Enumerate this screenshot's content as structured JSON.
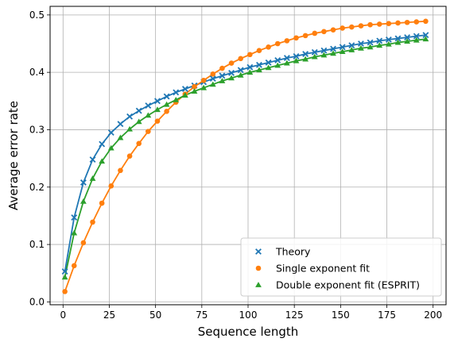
{
  "chart_data": {
    "type": "scatter",
    "xlabel": "Sequence length",
    "ylabel": "Average error rate",
    "xlim": [
      -7,
      207
    ],
    "ylim": [
      -0.005,
      0.515
    ],
    "xticks": [
      0,
      25,
      50,
      75,
      100,
      125,
      150,
      175,
      200
    ],
    "yticks": [
      0.0,
      0.1,
      0.2,
      0.3,
      0.4,
      0.5
    ],
    "xtick_labels": [
      "0",
      "25",
      "50",
      "75",
      "100",
      "125",
      "150",
      "175",
      "200"
    ],
    "ytick_labels": [
      "0.0",
      "0.1",
      "0.2",
      "0.3",
      "0.4",
      "0.5"
    ],
    "grid": true,
    "legend_position": "lower right",
    "x": [
      1,
      6,
      11,
      16,
      21,
      26,
      31,
      36,
      41,
      46,
      51,
      56,
      61,
      66,
      71,
      76,
      81,
      86,
      91,
      96,
      101,
      106,
      111,
      116,
      121,
      126,
      131,
      136,
      141,
      146,
      151,
      156,
      161,
      166,
      171,
      176,
      181,
      186,
      191,
      196
    ],
    "series": [
      {
        "name": "Theory",
        "marker": "x",
        "color": "#1f77b4",
        "values": [
          0.053,
          0.147,
          0.208,
          0.248,
          0.275,
          0.295,
          0.31,
          0.323,
          0.333,
          0.342,
          0.35,
          0.358,
          0.365,
          0.371,
          0.377,
          0.383,
          0.389,
          0.394,
          0.399,
          0.404,
          0.409,
          0.413,
          0.417,
          0.421,
          0.425,
          0.428,
          0.432,
          0.435,
          0.438,
          0.441,
          0.444,
          0.447,
          0.45,
          0.452,
          0.455,
          0.457,
          0.459,
          0.461,
          0.463,
          0.465
        ]
      },
      {
        "name": "Single exponent fit",
        "marker": "o",
        "color": "#ff7f0e",
        "values": [
          0.018,
          0.063,
          0.103,
          0.139,
          0.172,
          0.202,
          0.229,
          0.254,
          0.276,
          0.297,
          0.315,
          0.332,
          0.348,
          0.362,
          0.375,
          0.386,
          0.397,
          0.407,
          0.416,
          0.424,
          0.431,
          0.438,
          0.444,
          0.45,
          0.455,
          0.46,
          0.464,
          0.468,
          0.471,
          0.474,
          0.477,
          0.479,
          0.481,
          0.483,
          0.484,
          0.485,
          0.486,
          0.487,
          0.488,
          0.489
        ]
      },
      {
        "name": "Double exponent fit (ESPRIT)",
        "marker": "^",
        "color": "#2ca02c",
        "values": [
          0.043,
          0.12,
          0.175,
          0.215,
          0.245,
          0.268,
          0.286,
          0.301,
          0.314,
          0.325,
          0.335,
          0.344,
          0.352,
          0.36,
          0.367,
          0.373,
          0.379,
          0.385,
          0.39,
          0.395,
          0.4,
          0.404,
          0.408,
          0.412,
          0.416,
          0.42,
          0.423,
          0.427,
          0.43,
          0.433,
          0.436,
          0.439,
          0.442,
          0.444,
          0.447,
          0.449,
          0.452,
          0.454,
          0.456,
          0.458
        ]
      }
    ],
    "fit_lines": [
      {
        "color": "#1f77b4",
        "series_index": 0
      },
      {
        "color": "#ff7f0e",
        "series_index": 1
      },
      {
        "color": "#2ca02c",
        "series_index": 2
      }
    ]
  }
}
